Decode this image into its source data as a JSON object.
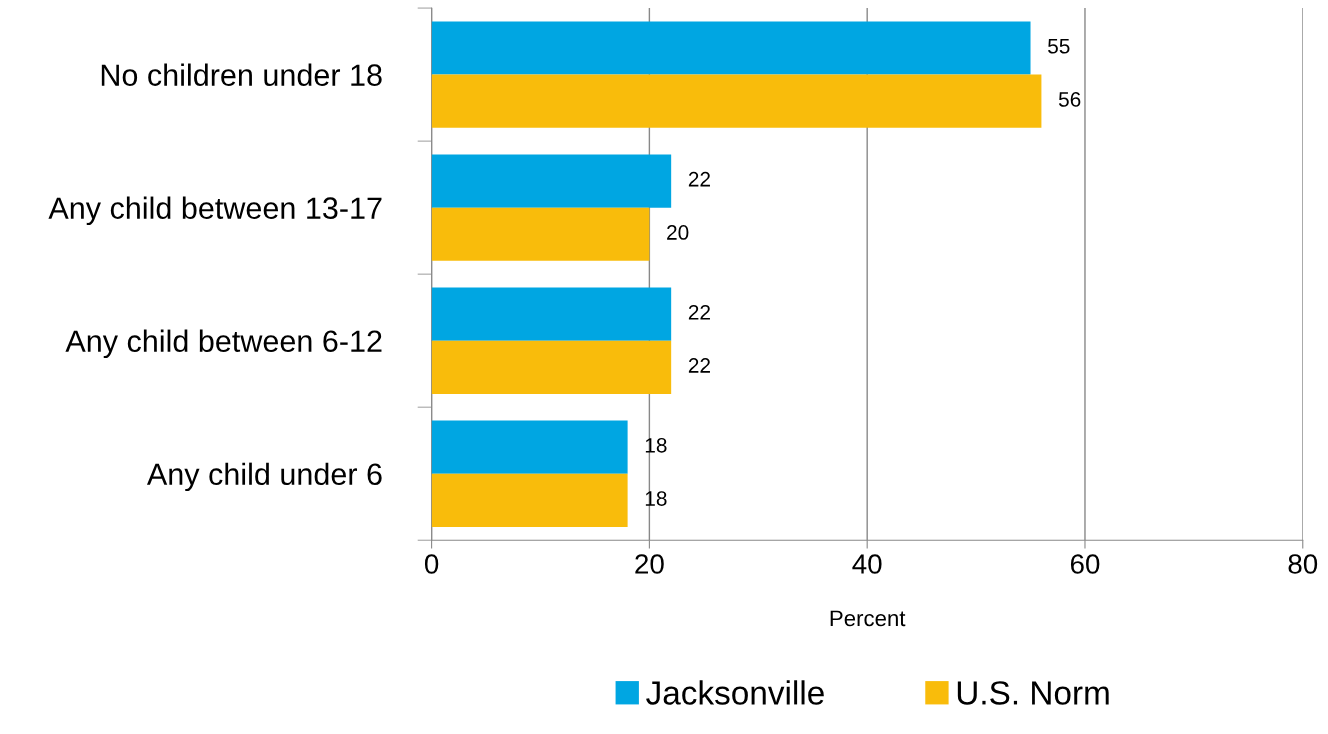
{
  "chart_data": {
    "type": "bar",
    "orientation": "horizontal",
    "categories": [
      "No children under 18",
      "Any child between 13-17",
      "Any child between 6-12",
      "Any child under 6"
    ],
    "series": [
      {
        "name": "Jacksonville",
        "color": "#00a6e2",
        "values": [
          55,
          22,
          22,
          18
        ]
      },
      {
        "name": "U.S. Norm",
        "color": "#f9bc0b",
        "values": [
          56,
          20,
          22,
          18
        ]
      }
    ],
    "xlabel": "Percent",
    "xlim": [
      0,
      80
    ],
    "xticks": [
      0,
      20,
      40,
      60,
      80
    ],
    "grid": "x",
    "legend": "bottom",
    "data_labels": true
  }
}
